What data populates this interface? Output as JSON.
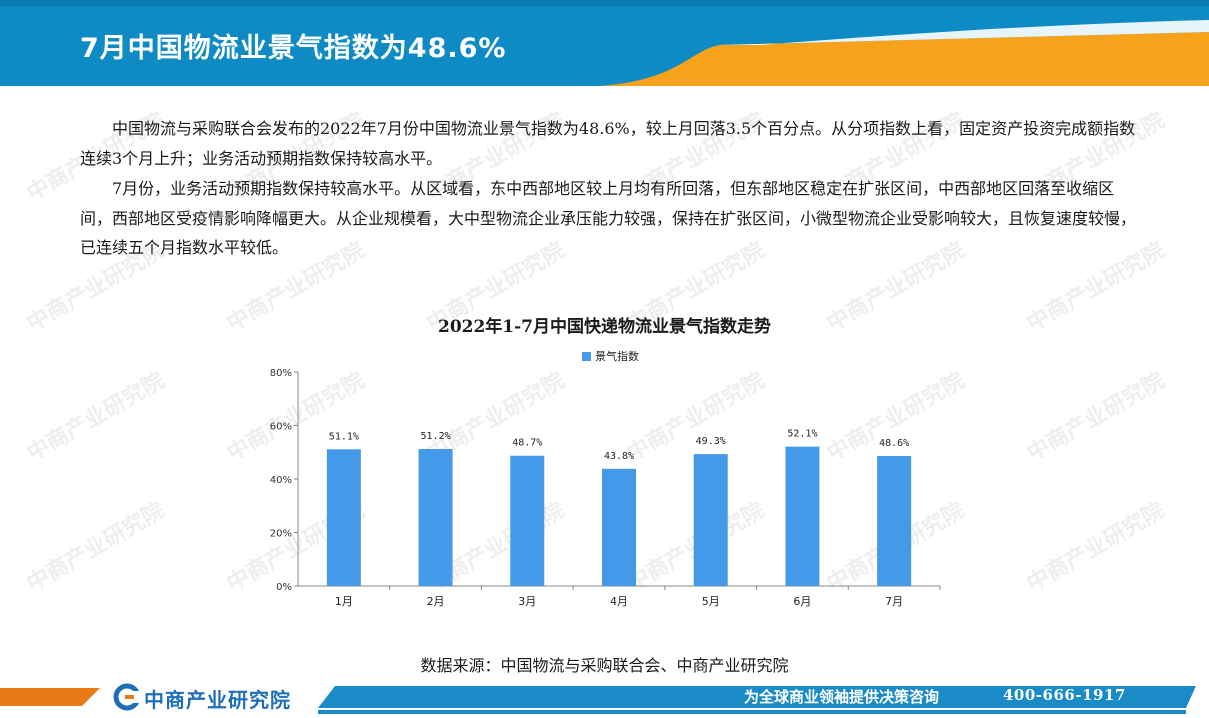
{
  "header": {
    "title": "7月中国物流业景气指数为48.6%"
  },
  "article": {
    "paragraphs": [
      "中国物流与采购联合会发布的2022年7月份中国物流业景气指数为48.6%，较上月回落3.5个百分点。从分项指数上看，固定资产投资完成额指数连续3个月上升；业务活动预期指数保持较高水平。",
      "7月份，业务活动预期指数保持较高水平。从区域看，东中西部地区较上月均有所回落，但东部地区稳定在扩张区间，中西部地区回落至收缩区间，西部地区受疫情影响降幅更大。从企业规模看，大中型物流企业承压能力较强，保持在扩张区间，小微型物流企业受影响较大，且恢复速度较慢，已连续五个月指数水平较低。"
    ]
  },
  "chart_data": {
    "type": "bar",
    "title": "2022年1-7月中国快递物流业景气指数走势",
    "categories": [
      "1月",
      "2月",
      "3月",
      "4月",
      "5月",
      "6月",
      "7月"
    ],
    "series": [
      {
        "name": "景气指数",
        "values": [
          51.1,
          51.2,
          48.7,
          43.8,
          49.3,
          52.1,
          48.6
        ],
        "labels": [
          "51.1%",
          "51.2%",
          "48.7%",
          "43.8%",
          "49.3%",
          "52.1%",
          "48.6%"
        ]
      }
    ],
    "ylim": [
      0,
      80
    ],
    "yticks": [
      "0%",
      "20%",
      "40%",
      "60%",
      "80%"
    ],
    "ytick_values": [
      0,
      20,
      40,
      60,
      80
    ],
    "bar_color": "#4499E9",
    "legend_position": "top-center",
    "grid": false
  },
  "source": {
    "text": "数据来源：中国物流与采购联合会、中商产业研究院"
  },
  "footer": {
    "logo_text": "中商产业研究院",
    "slogan": "为全球商业领袖提供决策咨询",
    "phone": "400-666-1917"
  },
  "watermark": {
    "text": "中商产业研究院"
  },
  "colors": {
    "header_blue": "#0E8BC4",
    "accent_orange": "#F7A21B",
    "footer_orange": "#E87B16",
    "footer_blue": "#1A8BC6"
  }
}
